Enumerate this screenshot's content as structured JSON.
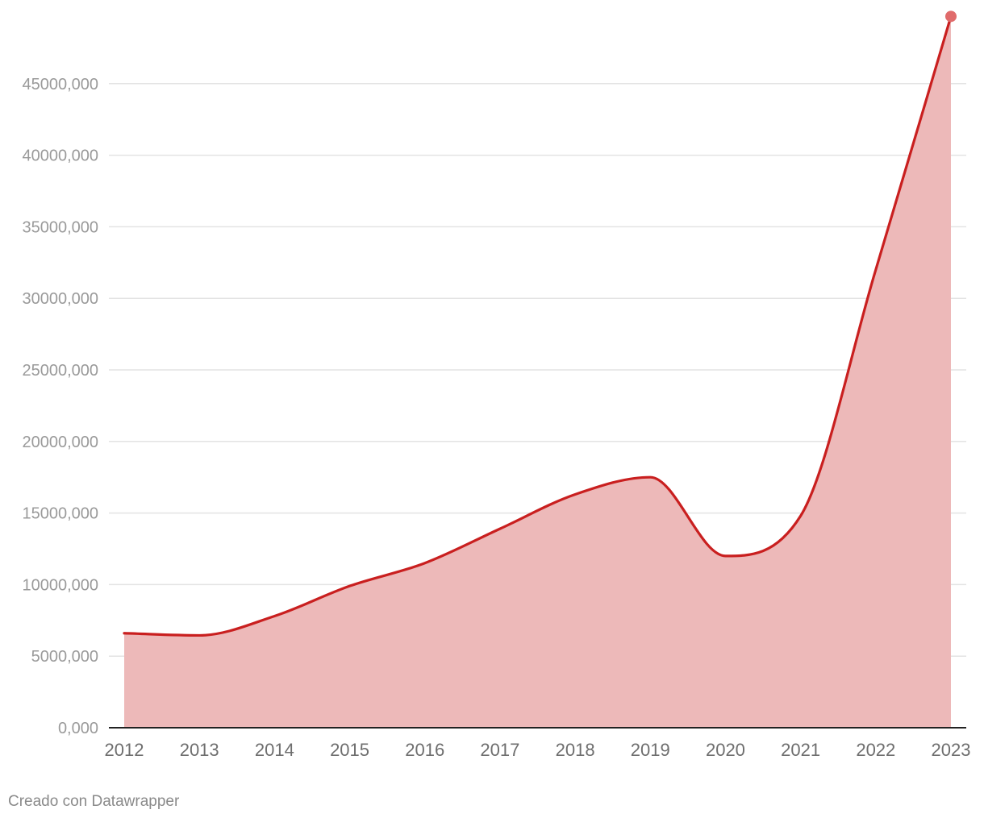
{
  "chart_data": {
    "type": "area",
    "title": "",
    "xlabel": "",
    "ylabel": "",
    "categories": [
      "2012",
      "2013",
      "2014",
      "2015",
      "2016",
      "2017",
      "2018",
      "2019",
      "2020",
      "2021",
      "2022",
      "2023"
    ],
    "series": [
      {
        "name": "",
        "values": [
          6600000,
          6450000,
          7800000,
          9900000,
          11500000,
          13900000,
          16300000,
          17500000,
          12000000,
          14800000,
          32000000,
          49700000
        ]
      }
    ],
    "ylim": [
      0,
      50000000
    ],
    "yticks": [
      0,
      5000000,
      10000000,
      15000000,
      20000000,
      25000000,
      30000000,
      35000000,
      40000000,
      45000000
    ],
    "ytick_labels": [
      "0,000",
      "5000,000",
      "10000,000",
      "15000,000",
      "20000,000",
      "25000,000",
      "30000,000",
      "35000,000",
      "40000,000",
      "45000,000"
    ],
    "grid": true,
    "colors": {
      "line": "#c91f1f",
      "fill": "#edb9b9",
      "endpoint": "#e06b6b"
    }
  },
  "footer": {
    "credit": "Creado con Datawrapper"
  }
}
